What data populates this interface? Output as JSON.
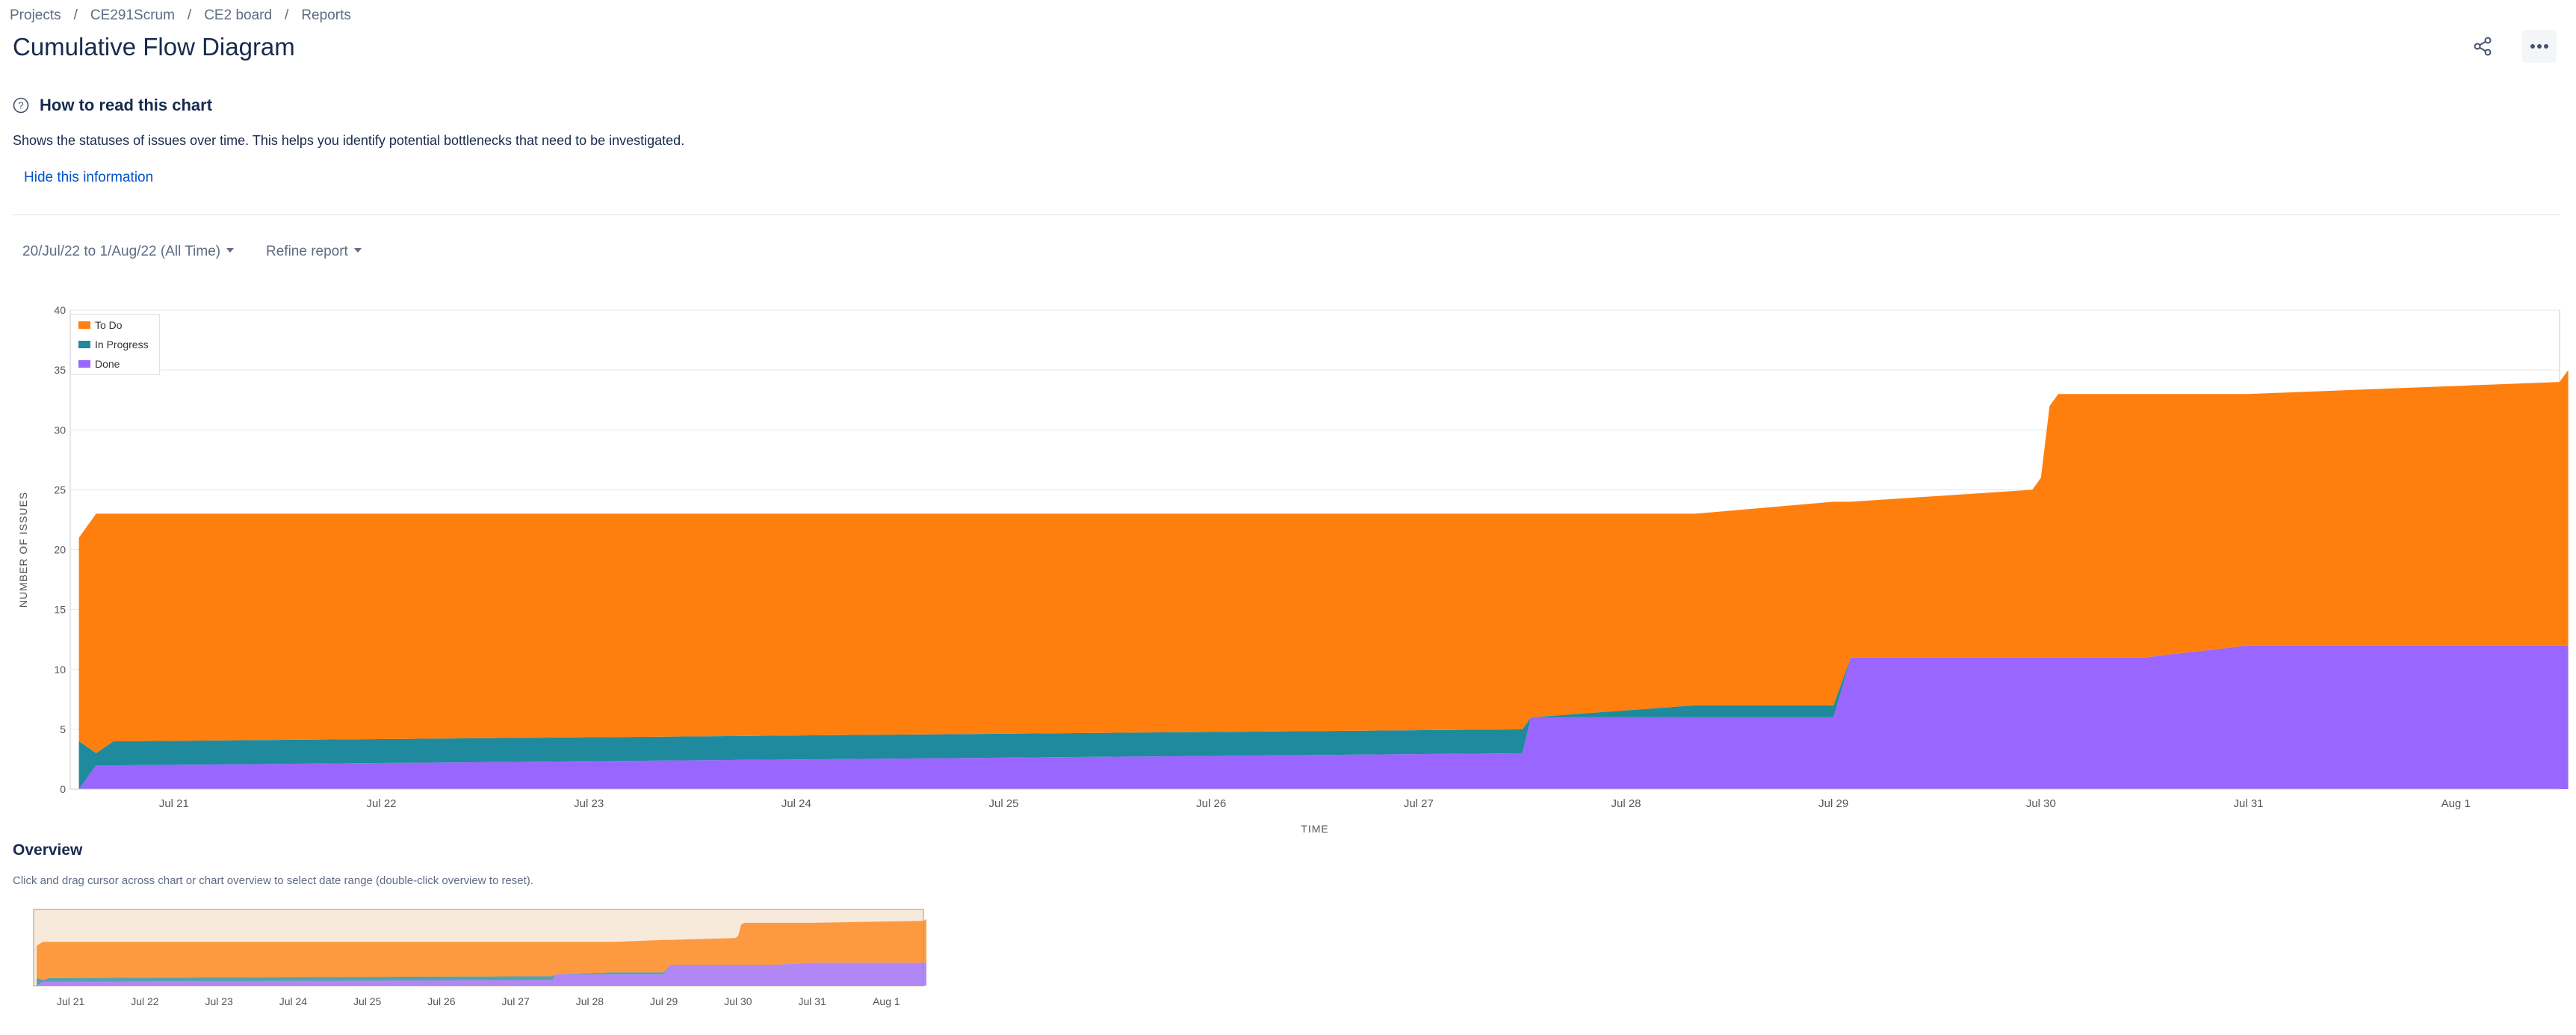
{
  "breadcrumb": {
    "items": [
      "Projects",
      "CE291Scrum",
      "CE2 board",
      "Reports"
    ],
    "sep": "/"
  },
  "page_title": "Cumulative Flow Diagram",
  "info": {
    "title": "How to read this chart",
    "text": "Shows the statuses of issues over time. This helps you identify potential bottlenecks that need to be investigated.",
    "hide_link": "Hide this information"
  },
  "filters": {
    "date_range": "20/Jul/22 to 1/Aug/22 (All Time)",
    "refine": "Refine report"
  },
  "overview": {
    "title": "Overview",
    "hint": "Click and drag cursor across chart or chart overview to select date range (double-click overview to reset)."
  },
  "colors": {
    "todo": "#ff7f0e",
    "in_progress": "#1f8a9e",
    "done": "#9966ff"
  },
  "chart_data": {
    "type": "area",
    "stacked": true,
    "xlabel": "TIME",
    "ylabel": "NUMBER OF ISSUES",
    "ylim": [
      0,
      40
    ],
    "yticks": [
      0,
      5,
      10,
      15,
      20,
      25,
      30,
      35,
      40
    ],
    "xticks": [
      "Jul 21",
      "Jul 22",
      "Jul 23",
      "Jul 24",
      "Jul 25",
      "Jul 26",
      "Jul 27",
      "Jul 28",
      "Jul 29",
      "Jul 30",
      "Jul 31",
      "Aug 1"
    ],
    "legend_position": "top-left",
    "x": [
      "2022-07-20 13:00",
      "2022-07-20 15:00",
      "2022-07-20 17:00",
      "2022-07-20 18:00",
      "2022-07-27 12:00",
      "2022-07-27 13:00",
      "2022-07-28 08:00",
      "2022-07-29 00:00",
      "2022-07-29 02:00",
      "2022-07-29 23:00",
      "2022-07-30 00:00",
      "2022-07-30 01:00",
      "2022-07-30 02:00",
      "2022-07-30 12:00",
      "2022-07-31 00:00",
      "2022-08-01 12:00",
      "2022-08-01 13:00"
    ],
    "series": [
      {
        "name": "Done",
        "values": [
          0,
          2,
          2,
          2,
          3,
          6,
          6,
          6,
          11,
          11,
          11,
          11,
          11,
          11,
          12,
          12,
          12
        ]
      },
      {
        "name": "In Progress",
        "values": [
          4,
          1,
          2,
          2,
          2,
          0,
          1,
          1,
          0,
          0,
          0,
          0,
          0,
          0,
          0,
          0,
          0
        ]
      },
      {
        "name": "To Do",
        "values": [
          17,
          20,
          19,
          19,
          18,
          17,
          16,
          17,
          13,
          14,
          15,
          21,
          22,
          22,
          21,
          22,
          23
        ]
      }
    ]
  }
}
